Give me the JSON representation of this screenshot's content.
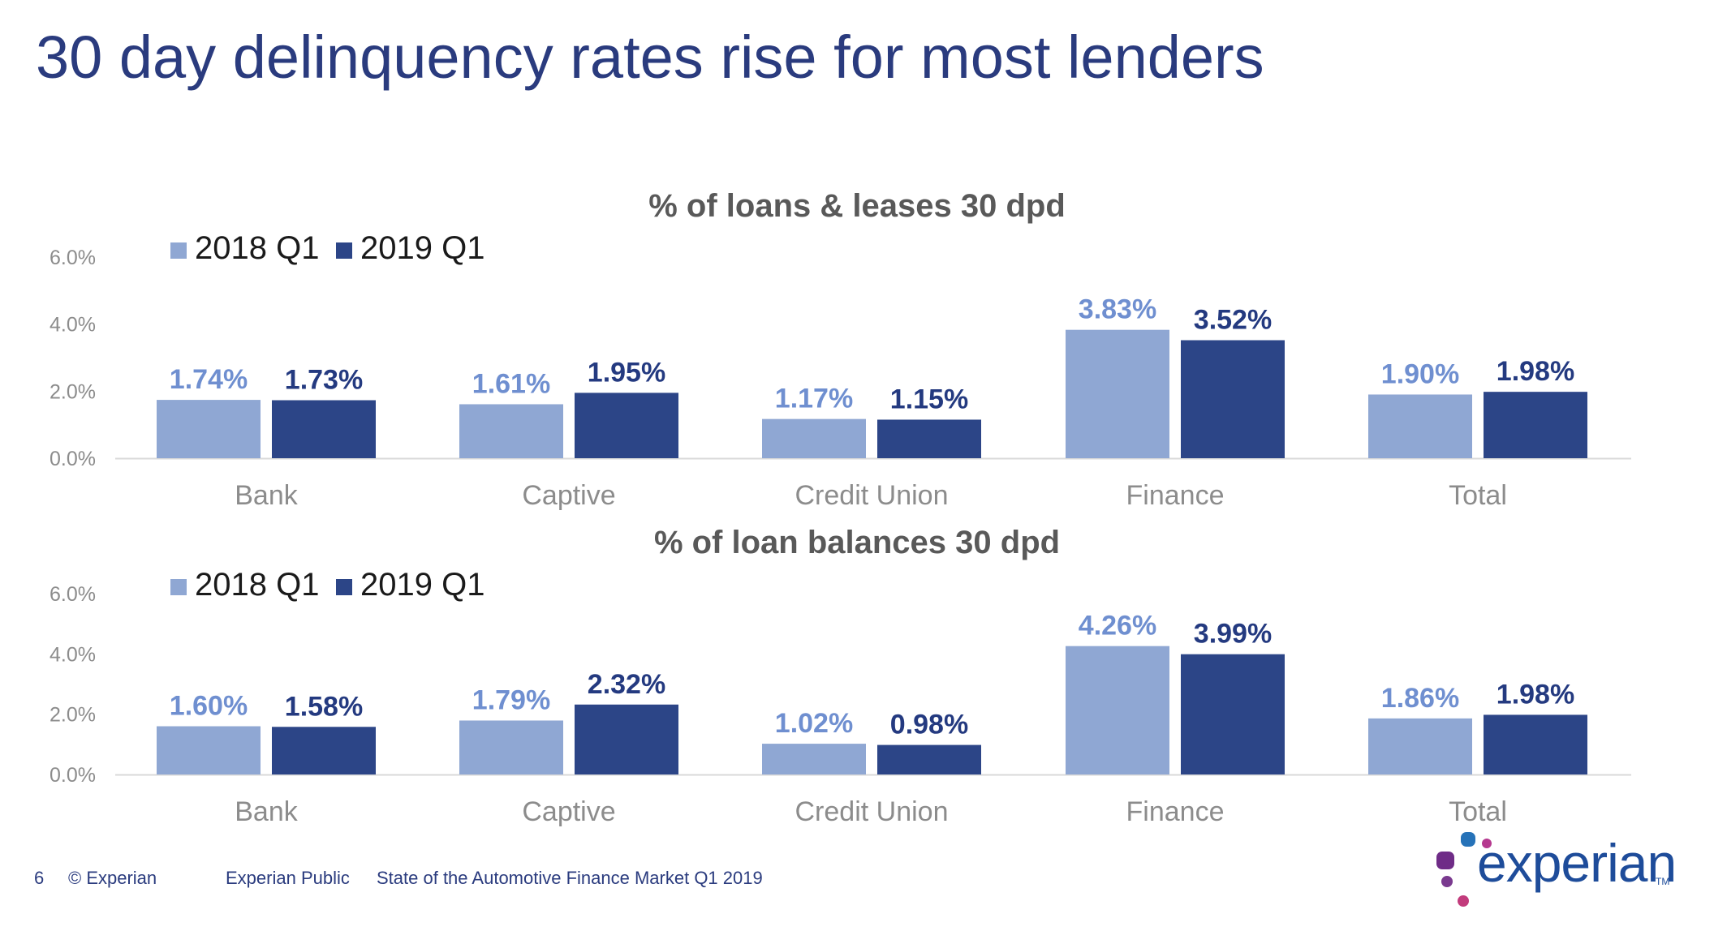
{
  "title": "30 day delinquency rates rise for most lenders",
  "colors": {
    "series_2018": "#8fa7d3",
    "series_2019": "#2c4587",
    "label_2018": "#6f8fd0",
    "label_2019": "#243a80",
    "axis_text": "#8c8c8c",
    "title_text": "#595959"
  },
  "chart_data": [
    {
      "type": "bar",
      "title": "% of loans & leases 30 dpd",
      "categories": [
        "Bank",
        "Captive",
        "Credit Union",
        "Finance",
        "Total"
      ],
      "series": [
        {
          "name": "2018 Q1",
          "values": [
            1.74,
            1.61,
            1.17,
            3.83,
            1.9
          ],
          "labels": [
            "1.74%",
            "1.61%",
            "1.17%",
            "3.83%",
            "1.90%"
          ]
        },
        {
          "name": "2019 Q1",
          "values": [
            1.73,
            1.95,
            1.15,
            3.52,
            1.98
          ],
          "labels": [
            "1.73%",
            "1.95%",
            "1.15%",
            "3.52%",
            "1.98%"
          ]
        }
      ],
      "ylim": [
        0,
        6
      ],
      "yticks": [
        "0.0%",
        "2.0%",
        "4.0%",
        "6.0%"
      ],
      "legend": "top-left",
      "grid": false
    },
    {
      "type": "bar",
      "title": "% of loan balances 30 dpd",
      "categories": [
        "Bank",
        "Captive",
        "Credit Union",
        "Finance",
        "Total"
      ],
      "series": [
        {
          "name": "2018 Q1",
          "values": [
            1.6,
            1.79,
            1.02,
            4.26,
            1.86
          ],
          "labels": [
            "1.60%",
            "1.79%",
            "1.02%",
            "4.26%",
            "1.86%"
          ]
        },
        {
          "name": "2019 Q1",
          "values": [
            1.58,
            2.32,
            0.98,
            3.99,
            1.98
          ],
          "labels": [
            "1.58%",
            "2.32%",
            "0.98%",
            "3.99%",
            "1.98%"
          ]
        }
      ],
      "ylim": [
        0,
        6
      ],
      "yticks": [
        "0.0%",
        "2.0%",
        "4.0%",
        "6.0%"
      ],
      "legend": "top-left",
      "grid": false
    }
  ],
  "footer": {
    "page_number": "6",
    "copyright": "© Experian",
    "classification": "Experian Public",
    "report_name": "State of the Automotive Finance Market Q1 2019"
  },
  "logo": {
    "text": "experian",
    "tm": "TM",
    "icon": "experian-dots-logo-icon"
  }
}
